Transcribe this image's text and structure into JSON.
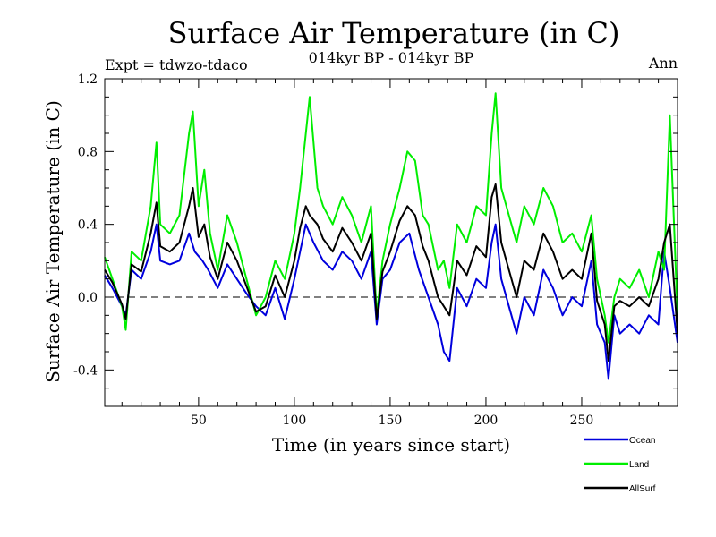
{
  "chart_data": {
    "type": "line",
    "title": "Surface Air Temperature (in C)",
    "subtitle": "014kyr BP - 014kyr BP",
    "experiment_label": "Expt = tdwzo-tdaco",
    "season_label": "Ann",
    "xlabel": "Time (in years since start)",
    "ylabel": "Surface Air Temperature (in C)",
    "xlim": [
      1,
      300
    ],
    "ylim": [
      -0.6,
      1.2
    ],
    "xticks": [
      50,
      100,
      150,
      200,
      250
    ],
    "xtick_labels": [
      "50",
      "100",
      "150",
      "200",
      "250"
    ],
    "yticks": [
      -0.4,
      0.0,
      0.4,
      0.8,
      1.2
    ],
    "ytick_labels": [
      "-0.4",
      "0.0",
      "0.4",
      "0.8",
      "1.2"
    ],
    "reference_line": 0.0,
    "legend_position": "bottom-right",
    "series": [
      {
        "name": "Ocean",
        "color": "#0000dd",
        "values": [
          [
            1,
            0.12
          ],
          [
            5,
            0.05
          ],
          [
            10,
            -0.05
          ],
          [
            12,
            -0.1
          ],
          [
            15,
            0.15
          ],
          [
            20,
            0.1
          ],
          [
            25,
            0.25
          ],
          [
            28,
            0.4
          ],
          [
            30,
            0.2
          ],
          [
            35,
            0.18
          ],
          [
            40,
            0.2
          ],
          [
            45,
            0.35
          ],
          [
            48,
            0.25
          ],
          [
            52,
            0.2
          ],
          [
            55,
            0.15
          ],
          [
            60,
            0.05
          ],
          [
            65,
            0.18
          ],
          [
            70,
            0.1
          ],
          [
            75,
            0.02
          ],
          [
            80,
            -0.05
          ],
          [
            85,
            -0.1
          ],
          [
            90,
            0.05
          ],
          [
            95,
            -0.12
          ],
          [
            100,
            0.1
          ],
          [
            103,
            0.25
          ],
          [
            106,
            0.4
          ],
          [
            110,
            0.3
          ],
          [
            115,
            0.2
          ],
          [
            120,
            0.15
          ],
          [
            125,
            0.25
          ],
          [
            130,
            0.2
          ],
          [
            135,
            0.1
          ],
          [
            140,
            0.25
          ],
          [
            143,
            -0.15
          ],
          [
            146,
            0.1
          ],
          [
            150,
            0.15
          ],
          [
            155,
            0.3
          ],
          [
            160,
            0.35
          ],
          [
            165,
            0.15
          ],
          [
            170,
            0.0
          ],
          [
            175,
            -0.15
          ],
          [
            178,
            -0.3
          ],
          [
            181,
            -0.35
          ],
          [
            185,
            0.05
          ],
          [
            190,
            -0.05
          ],
          [
            195,
            0.1
          ],
          [
            200,
            0.05
          ],
          [
            203,
            0.3
          ],
          [
            205,
            0.4
          ],
          [
            208,
            0.1
          ],
          [
            212,
            -0.05
          ],
          [
            216,
            -0.2
          ],
          [
            220,
            0.0
          ],
          [
            225,
            -0.1
          ],
          [
            230,
            0.15
          ],
          [
            235,
            0.05
          ],
          [
            240,
            -0.1
          ],
          [
            245,
            0.0
          ],
          [
            250,
            -0.05
          ],
          [
            255,
            0.2
          ],
          [
            258,
            -0.15
          ],
          [
            262,
            -0.25
          ],
          [
            264,
            -0.45
          ],
          [
            267,
            -0.1
          ],
          [
            270,
            -0.2
          ],
          [
            275,
            -0.15
          ],
          [
            280,
            -0.2
          ],
          [
            285,
            -0.1
          ],
          [
            290,
            -0.15
          ],
          [
            293,
            0.25
          ],
          [
            296,
            0.05
          ],
          [
            300,
            -0.25
          ]
        ]
      },
      {
        "name": "Land",
        "color": "#00ee00",
        "values": [
          [
            1,
            0.22
          ],
          [
            5,
            0.1
          ],
          [
            10,
            -0.05
          ],
          [
            12,
            -0.18
          ],
          [
            15,
            0.25
          ],
          [
            20,
            0.2
          ],
          [
            25,
            0.5
          ],
          [
            28,
            0.85
          ],
          [
            30,
            0.4
          ],
          [
            35,
            0.35
          ],
          [
            40,
            0.45
          ],
          [
            45,
            0.9
          ],
          [
            47,
            1.02
          ],
          [
            50,
            0.5
          ],
          [
            53,
            0.7
          ],
          [
            56,
            0.35
          ],
          [
            60,
            0.15
          ],
          [
            65,
            0.45
          ],
          [
            70,
            0.3
          ],
          [
            75,
            0.1
          ],
          [
            80,
            -0.1
          ],
          [
            85,
            0.0
          ],
          [
            90,
            0.2
          ],
          [
            95,
            0.1
          ],
          [
            100,
            0.35
          ],
          [
            103,
            0.6
          ],
          [
            106,
            0.9
          ],
          [
            108,
            1.1
          ],
          [
            112,
            0.6
          ],
          [
            115,
            0.5
          ],
          [
            120,
            0.4
          ],
          [
            125,
            0.55
          ],
          [
            130,
            0.45
          ],
          [
            135,
            0.3
          ],
          [
            140,
            0.5
          ],
          [
            143,
            -0.1
          ],
          [
            146,
            0.2
          ],
          [
            150,
            0.4
          ],
          [
            155,
            0.6
          ],
          [
            159,
            0.8
          ],
          [
            163,
            0.75
          ],
          [
            167,
            0.45
          ],
          [
            170,
            0.4
          ],
          [
            175,
            0.15
          ],
          [
            178,
            0.2
          ],
          [
            181,
            0.05
          ],
          [
            185,
            0.4
          ],
          [
            190,
            0.3
          ],
          [
            195,
            0.5
          ],
          [
            200,
            0.45
          ],
          [
            203,
            0.9
          ],
          [
            205,
            1.12
          ],
          [
            208,
            0.6
          ],
          [
            212,
            0.45
          ],
          [
            216,
            0.3
          ],
          [
            220,
            0.5
          ],
          [
            225,
            0.4
          ],
          [
            230,
            0.6
          ],
          [
            235,
            0.5
          ],
          [
            240,
            0.3
          ],
          [
            245,
            0.35
          ],
          [
            250,
            0.25
          ],
          [
            255,
            0.45
          ],
          [
            258,
            0.1
          ],
          [
            262,
            -0.1
          ],
          [
            264,
            -0.25
          ],
          [
            267,
            0.0
          ],
          [
            270,
            0.1
          ],
          [
            275,
            0.05
          ],
          [
            280,
            0.15
          ],
          [
            285,
            0.0
          ],
          [
            290,
            0.25
          ],
          [
            293,
            0.15
          ],
          [
            296,
            1.0
          ],
          [
            300,
            -0.1
          ]
        ]
      },
      {
        "name": "AllSurf",
        "color": "#000000",
        "values": [
          [
            1,
            0.15
          ],
          [
            5,
            0.08
          ],
          [
            10,
            -0.04
          ],
          [
            12,
            -0.12
          ],
          [
            15,
            0.18
          ],
          [
            20,
            0.14
          ],
          [
            25,
            0.35
          ],
          [
            28,
            0.52
          ],
          [
            30,
            0.28
          ],
          [
            35,
            0.25
          ],
          [
            40,
            0.3
          ],
          [
            45,
            0.5
          ],
          [
            47,
            0.6
          ],
          [
            50,
            0.33
          ],
          [
            53,
            0.4
          ],
          [
            56,
            0.22
          ],
          [
            60,
            0.1
          ],
          [
            65,
            0.3
          ],
          [
            70,
            0.2
          ],
          [
            75,
            0.06
          ],
          [
            80,
            -0.08
          ],
          [
            85,
            -0.05
          ],
          [
            90,
            0.12
          ],
          [
            95,
            0.0
          ],
          [
            100,
            0.2
          ],
          [
            103,
            0.38
          ],
          [
            106,
            0.5
          ],
          [
            108,
            0.45
          ],
          [
            112,
            0.4
          ],
          [
            115,
            0.32
          ],
          [
            120,
            0.25
          ],
          [
            125,
            0.38
          ],
          [
            130,
            0.3
          ],
          [
            135,
            0.2
          ],
          [
            140,
            0.35
          ],
          [
            143,
            -0.12
          ],
          [
            146,
            0.14
          ],
          [
            150,
            0.25
          ],
          [
            155,
            0.42
          ],
          [
            159,
            0.5
          ],
          [
            163,
            0.45
          ],
          [
            167,
            0.28
          ],
          [
            170,
            0.2
          ],
          [
            175,
            0.0
          ],
          [
            178,
            -0.05
          ],
          [
            181,
            -0.1
          ],
          [
            185,
            0.2
          ],
          [
            190,
            0.12
          ],
          [
            195,
            0.28
          ],
          [
            200,
            0.22
          ],
          [
            203,
            0.55
          ],
          [
            205,
            0.62
          ],
          [
            208,
            0.3
          ],
          [
            212,
            0.15
          ],
          [
            216,
            0.0
          ],
          [
            220,
            0.2
          ],
          [
            225,
            0.15
          ],
          [
            230,
            0.35
          ],
          [
            235,
            0.25
          ],
          [
            240,
            0.1
          ],
          [
            245,
            0.15
          ],
          [
            250,
            0.1
          ],
          [
            255,
            0.35
          ],
          [
            258,
            -0.02
          ],
          [
            262,
            -0.15
          ],
          [
            264,
            -0.35
          ],
          [
            267,
            -0.05
          ],
          [
            270,
            -0.02
          ],
          [
            275,
            -0.05
          ],
          [
            280,
            0.0
          ],
          [
            285,
            -0.05
          ],
          [
            290,
            0.1
          ],
          [
            293,
            0.3
          ],
          [
            296,
            0.4
          ],
          [
            300,
            -0.2
          ]
        ]
      }
    ]
  }
}
